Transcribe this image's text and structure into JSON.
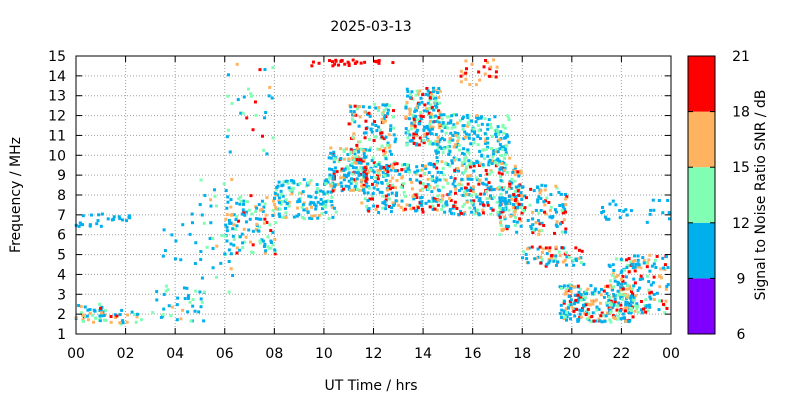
{
  "chart_data": {
    "type": "scatter",
    "title": "2025-03-13",
    "xlabel": "UT Time / hrs",
    "ylabel": "Frequency / MHz",
    "xlim": [
      0,
      24
    ],
    "ylim": [
      1,
      15
    ],
    "x_ticks": [
      "00",
      "02",
      "04",
      "06",
      "08",
      "10",
      "12",
      "14",
      "16",
      "18",
      "20",
      "22",
      "00"
    ],
    "y_ticks": [
      "1",
      "2",
      "3",
      "4",
      "5",
      "6",
      "7",
      "8",
      "9",
      "10",
      "11",
      "12",
      "13",
      "14",
      "15"
    ],
    "grid": true,
    "colorbar": {
      "label": "Signal to Noise Ratio SNR / dB",
      "range": [
        6,
        21
      ],
      "ticks": [
        "6",
        "9",
        "12",
        "15",
        "18",
        "21"
      ],
      "bands": [
        {
          "min": 6,
          "max": 9,
          "color": "#8000ff"
        },
        {
          "min": 9,
          "max": 12,
          "color": "#00b0ec"
        },
        {
          "min": 12,
          "max": 15,
          "color": "#80ffb4"
        },
        {
          "min": 15,
          "max": 18,
          "color": "#ffb360"
        },
        {
          "min": 18,
          "max": 21,
          "color": "#ff0000"
        }
      ]
    },
    "regions": [
      {
        "x": [
          0,
          1.2
        ],
        "f": [
          1.5,
          2.5
        ],
        "snr": [
          9,
          20
        ],
        "n": 40
      },
      {
        "x": [
          1.2,
          3.0
        ],
        "f": [
          1.5,
          2.2
        ],
        "snr": [
          9,
          19
        ],
        "n": 20
      },
      {
        "x": [
          3.0,
          5.2
        ],
        "f": [
          1.6,
          3.5
        ],
        "snr": [
          9,
          16
        ],
        "n": 40
      },
      {
        "x": [
          0,
          2.2
        ],
        "f": [
          6.4,
          7.1
        ],
        "snr": [
          9,
          12
        ],
        "n": 25
      },
      {
        "x": [
          3.5,
          5.2
        ],
        "f": [
          4.5,
          7.6
        ],
        "snr": [
          9,
          12
        ],
        "n": 15
      },
      {
        "x": [
          5.0,
          6.4
        ],
        "f": [
          3.0,
          9.0
        ],
        "snr": [
          9,
          18
        ],
        "n": 35
      },
      {
        "x": [
          6.0,
          8.2
        ],
        "f": [
          5.0,
          8.0
        ],
        "snr": [
          9,
          19
        ],
        "n": 120
      },
      {
        "x": [
          6.0,
          8.0
        ],
        "f": [
          10.0,
          14.6
        ],
        "snr": [
          9,
          20
        ],
        "n": 30
      },
      {
        "x": [
          8.0,
          10.5
        ],
        "f": [
          6.8,
          8.8
        ],
        "snr": [
          9,
          16
        ],
        "n": 140
      },
      {
        "x": [
          9.5,
          12.8
        ],
        "f": [
          14.5,
          14.8
        ],
        "snr": [
          18,
          21
        ],
        "n": 30
      },
      {
        "x": [
          10.2,
          11.8
        ],
        "f": [
          8.2,
          10.4
        ],
        "snr": [
          9,
          21
        ],
        "n": 140
      },
      {
        "x": [
          11.0,
          12.9
        ],
        "f": [
          8.8,
          12.6
        ],
        "snr": [
          9,
          21
        ],
        "n": 170
      },
      {
        "x": [
          11.5,
          18.0
        ],
        "f": [
          7.0,
          9.6
        ],
        "snr": [
          9,
          21
        ],
        "n": 480
      },
      {
        "x": [
          13.3,
          14.7
        ],
        "f": [
          10.5,
          13.4
        ],
        "snr": [
          9,
          21
        ],
        "n": 170
      },
      {
        "x": [
          14.5,
          17.5
        ],
        "f": [
          9.5,
          12.1
        ],
        "snr": [
          9,
          16
        ],
        "n": 240
      },
      {
        "x": [
          15.5,
          17.0
        ],
        "f": [
          13.5,
          14.9
        ],
        "snr": [
          15,
          21
        ],
        "n": 25
      },
      {
        "x": [
          17.0,
          19.8
        ],
        "f": [
          6.0,
          8.5
        ],
        "snr": [
          9,
          21
        ],
        "n": 160
      },
      {
        "x": [
          18.0,
          20.5
        ],
        "f": [
          4.4,
          5.4
        ],
        "snr": [
          9,
          21
        ],
        "n": 70
      },
      {
        "x": [
          19.5,
          22.5
        ],
        "f": [
          1.6,
          3.5
        ],
        "snr": [
          9,
          21
        ],
        "n": 240
      },
      {
        "x": [
          21.5,
          23.9
        ],
        "f": [
          2.0,
          5.0
        ],
        "snr": [
          9,
          21
        ],
        "n": 180
      },
      {
        "x": [
          21.0,
          24.0
        ],
        "f": [
          6.6,
          7.8
        ],
        "snr": [
          9,
          12
        ],
        "n": 25
      }
    ]
  }
}
